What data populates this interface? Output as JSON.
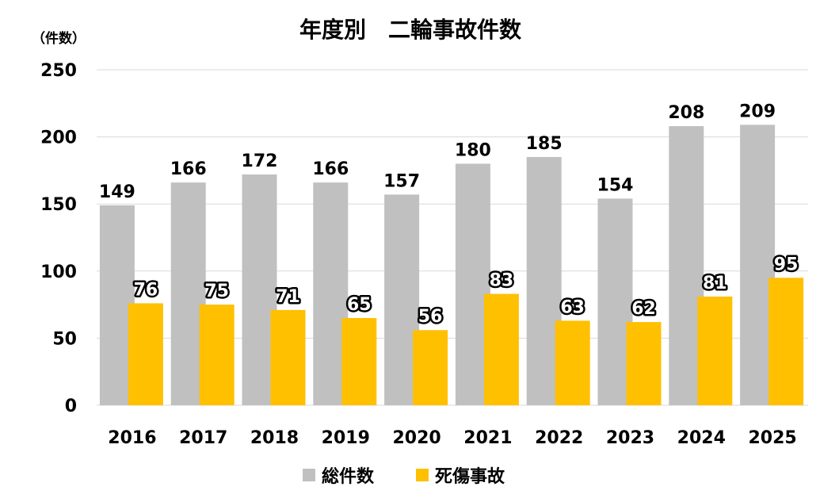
{
  "chart_data": {
    "type": "bar",
    "title": "年度別　二輪事故件数",
    "ylabel": "（件数）",
    "xlabel": "",
    "ylim": [
      0,
      250
    ],
    "yticks": [
      0,
      50,
      100,
      150,
      200,
      250
    ],
    "grid": true,
    "legend_position": "bottom",
    "categories": [
      "2016",
      "2017",
      "2018",
      "2019",
      "2020",
      "2021",
      "2022",
      "2023",
      "2024",
      "2025"
    ],
    "series": [
      {
        "name": "総件数",
        "color": "#c0c0c0",
        "label_color": "#000000",
        "values": [
          149,
          166,
          172,
          166,
          157,
          180,
          185,
          154,
          208,
          209
        ]
      },
      {
        "name": "死傷事故",
        "color": "#ffc000",
        "label_color": "#ffffff",
        "values": [
          76,
          75,
          71,
          65,
          56,
          83,
          63,
          62,
          81,
          95
        ]
      }
    ]
  }
}
